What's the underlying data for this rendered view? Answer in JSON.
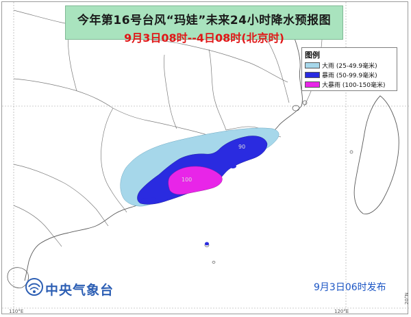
{
  "title": {
    "main": "今年第16号台风“玛娃”未来24小时降水预报图",
    "sub": "9月3日08时--4日08时(北京时)"
  },
  "legend": {
    "title": "图例",
    "items": [
      {
        "label": "大雨 (25-49.9毫米)",
        "color": "#a6d7ea"
      },
      {
        "label": "暴雨 (50-99.9毫米)",
        "color": "#2a2be0"
      },
      {
        "label": "大暴雨 (100-150毫米)",
        "color": "#e825e8"
      }
    ]
  },
  "agency": {
    "name": "中央气象台",
    "logo_icon": "cma-logo-icon"
  },
  "issue_time": "9月3日06时发布",
  "axis_labels": {
    "bottom_left": "110°E",
    "bottom_right": "120°E",
    "right_bottom": "20°N"
  },
  "contour_labels": {
    "c1": "90",
    "c2": "100"
  },
  "colors": {
    "title_bg": "#a9e3be",
    "land": "#ffffff",
    "sea": "#ffffff",
    "coast": "#5a5a5a",
    "grid": "#9e9e9e"
  }
}
